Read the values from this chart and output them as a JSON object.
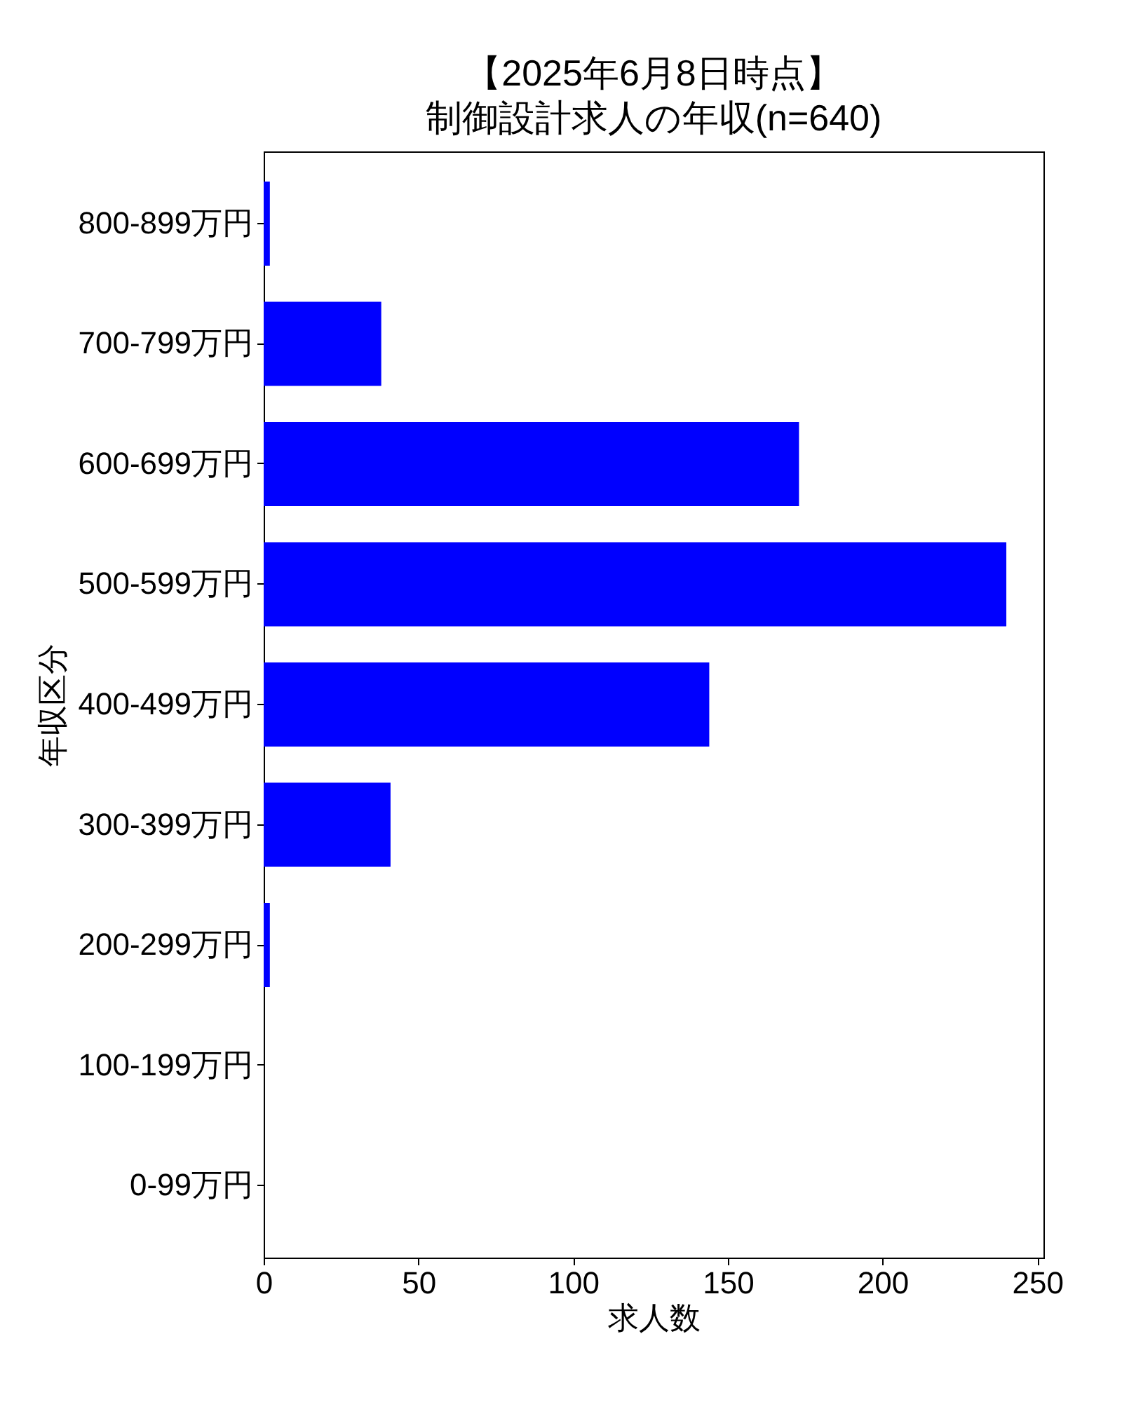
{
  "chart_data": {
    "type": "bar",
    "orientation": "horizontal",
    "title": "【2025年6月8日時点】",
    "subtitle": "制御設計求人の年収(n=640)",
    "xlabel": "求人数",
    "ylabel": "年収区分",
    "categories": [
      "800-899万円",
      "700-799万円",
      "600-699万円",
      "500-599万円",
      "400-499万円",
      "300-399万円",
      "200-299万円",
      "100-199万円",
      "0-99万円"
    ],
    "values": [
      2,
      38,
      173,
      240,
      144,
      41,
      2,
      0,
      0
    ],
    "color": "#0000ff",
    "xlim": [
      0,
      252
    ],
    "xticks": [
      0,
      50,
      100,
      150,
      200,
      250
    ]
  }
}
